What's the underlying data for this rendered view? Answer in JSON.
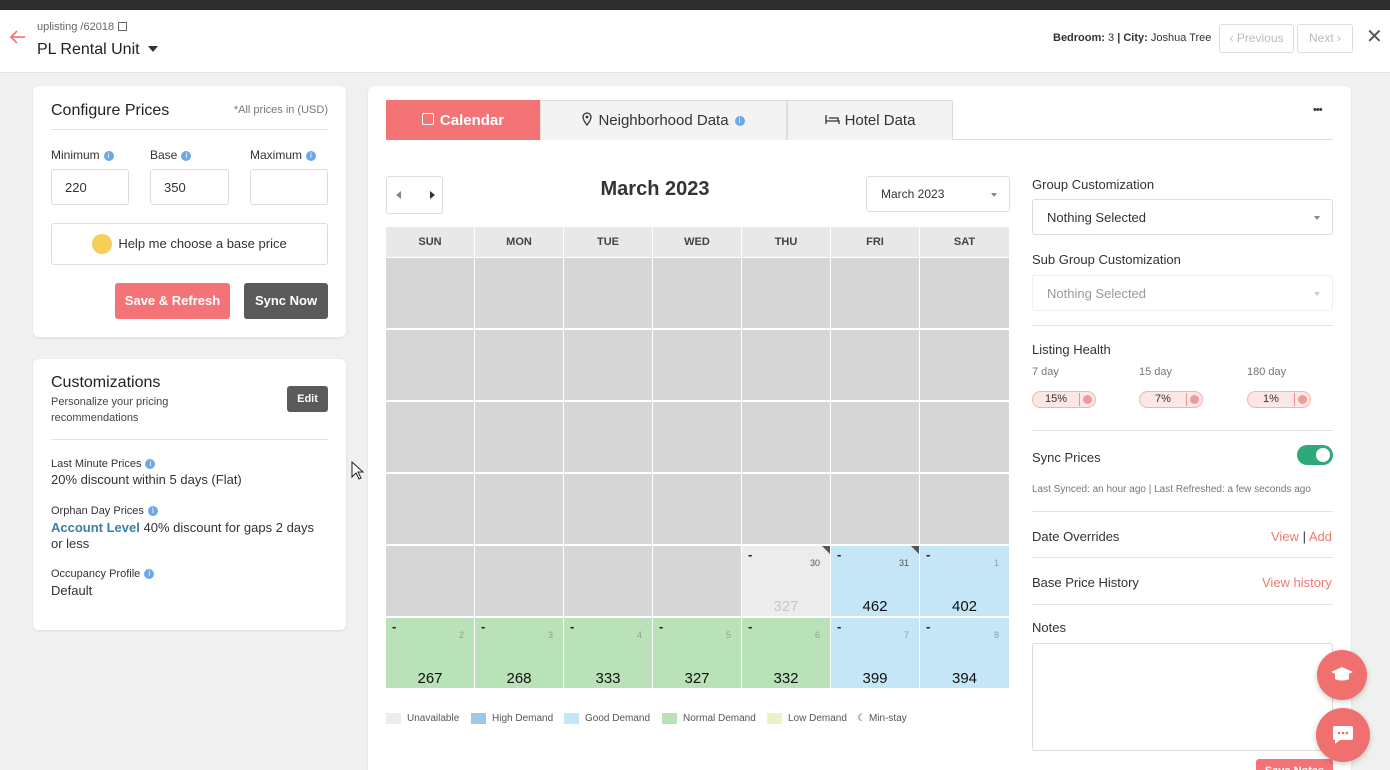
{
  "header": {
    "breadcrumb": "uplisting /62018",
    "property_name": "PL Rental Unit",
    "bedroom_label": "Bedroom:",
    "bedroom_value": "3",
    "separator": "|",
    "city_label": "City:",
    "city_value": "Joshua Tree",
    "previous_label": "Previous",
    "next_label": "Next"
  },
  "configure": {
    "title": "Configure Prices",
    "currency_note": "*All prices in (USD)",
    "min_label": "Minimum",
    "base_label": "Base",
    "max_label": "Maximum",
    "min_value": "220",
    "base_value": "350",
    "max_value": "",
    "help_label": "Help me choose a base price",
    "save_label": "Save & Refresh",
    "sync_label": "Sync Now"
  },
  "customizations": {
    "title": "Customizations",
    "subtitle": "Personalize your pricing recommendations",
    "edit_label": "Edit",
    "last_minute_title": "Last Minute Prices",
    "last_minute_value": "20% discount within 5 days (Flat)",
    "orphan_title": "Orphan Day Prices",
    "orphan_level": "Account Level",
    "orphan_value": "40% discount for gaps 2 days or less",
    "occupancy_title": "Occupancy Profile",
    "occupancy_value": "Default"
  },
  "tabs": [
    "Calendar",
    "Neighborhood Data",
    "Hotel Data"
  ],
  "more_label": "•••",
  "calendar": {
    "month_title": "March 2023",
    "month_select": "March 2023",
    "weekdays": [
      "SUN",
      "MON",
      "TUE",
      "WED",
      "THU",
      "FRI",
      "SAT"
    ],
    "row5": [
      {
        "day": "30",
        "price": "327",
        "status": "unavailable"
      },
      {
        "day": "31",
        "price": "462",
        "status": "good"
      },
      {
        "day": "1",
        "price": "402",
        "status": "good"
      }
    ],
    "row6": [
      {
        "day": "2",
        "price": "267",
        "status": "normal"
      },
      {
        "day": "3",
        "price": "268",
        "status": "normal"
      },
      {
        "day": "4",
        "price": "333",
        "status": "normal"
      },
      {
        "day": "5",
        "price": "327",
        "status": "normal"
      },
      {
        "day": "6",
        "price": "332",
        "status": "normal"
      },
      {
        "day": "7",
        "price": "399",
        "status": "good"
      },
      {
        "day": "8",
        "price": "394",
        "status": "good"
      }
    ],
    "legend": [
      "Unavailable",
      "High Demand",
      "Good Demand",
      "Normal Demand",
      "Low Demand",
      "Min-stay"
    ],
    "colors": {
      "unavailable": "#ececec",
      "high": "#9ec7e8",
      "good": "#c5e6f7",
      "normal": "#b9e2b9",
      "low": "#eaf3c6",
      "empty": "#d6d6d6"
    }
  },
  "right_panel": {
    "group_label": "Group Customization",
    "group_value": "Nothing Selected",
    "subgroup_label": "Sub Group Customization",
    "subgroup_value": "Nothing Selected",
    "health_label": "Listing Health",
    "health": [
      {
        "period": "7 day",
        "value": "15%"
      },
      {
        "period": "15 day",
        "value": "7%"
      },
      {
        "period": "180 day",
        "value": "1%"
      }
    ],
    "sync_label": "Sync Prices",
    "last_synced": "Last Synced: an hour ago | Last Refreshed: a few seconds ago",
    "overrides_label": "Date Overrides",
    "view_label": "View",
    "pipe": "|",
    "add_label": "Add",
    "history_label": "Base Price History",
    "view_history_label": "View history",
    "notes_label": "Notes",
    "save_notes_label": "Save Notes"
  }
}
